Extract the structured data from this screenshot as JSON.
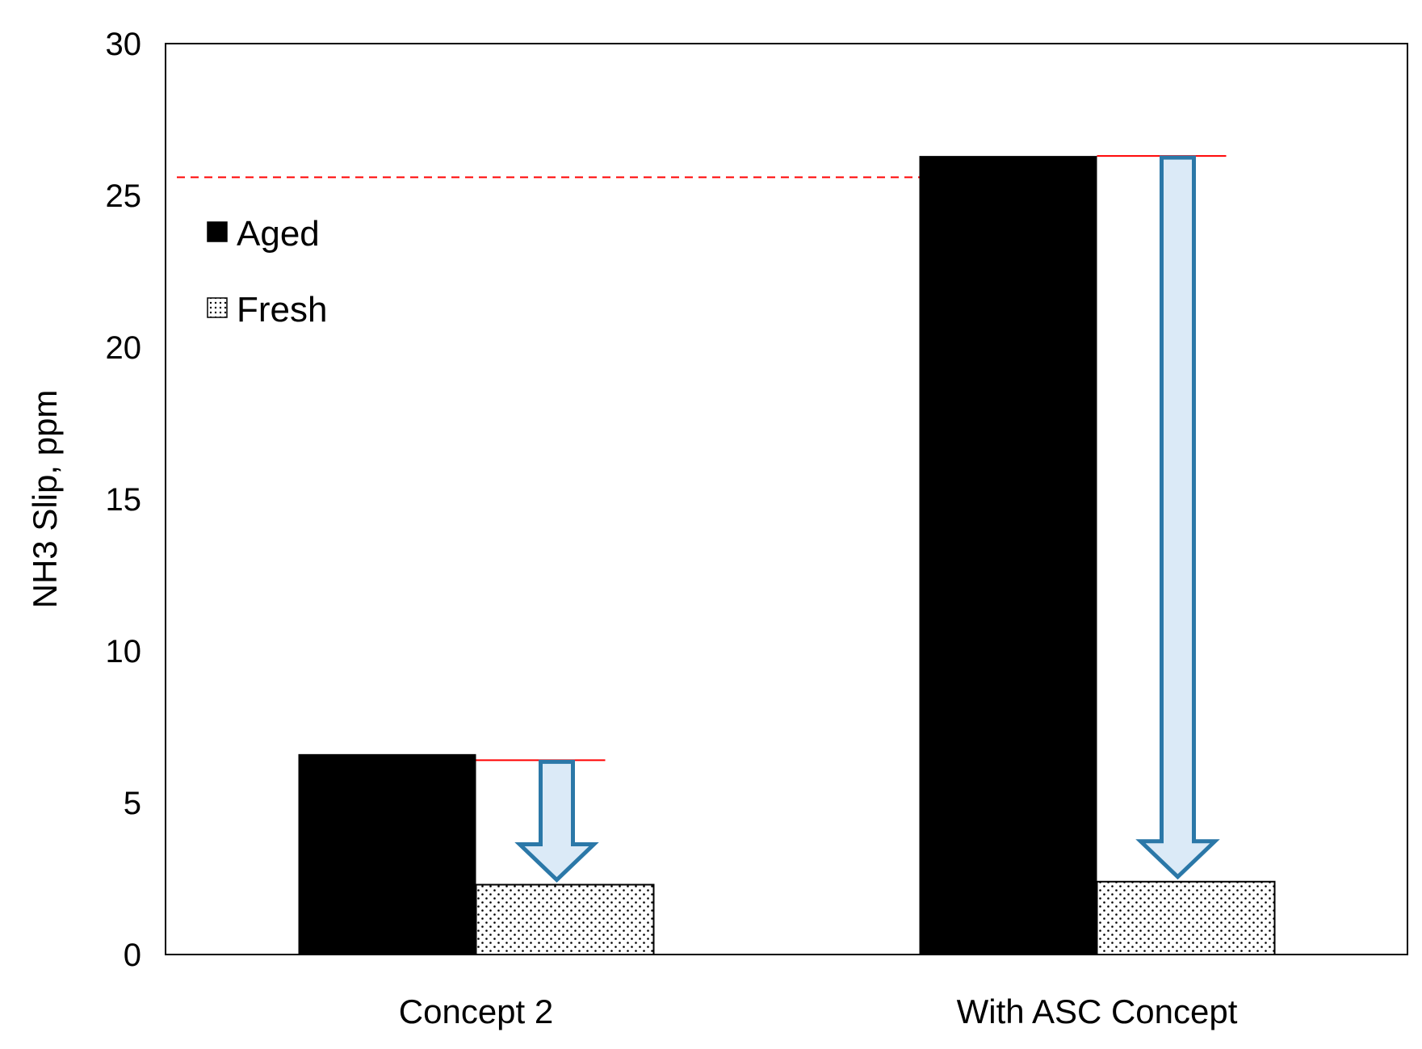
{
  "chart_data": {
    "type": "bar",
    "title": "",
    "xlabel": "",
    "ylabel": "NH3 Slip, ppm",
    "ylim": [
      0,
      30
    ],
    "yticks": [
      "0",
      "5",
      "10",
      "15",
      "20",
      "25",
      "30"
    ],
    "grid": false,
    "legend_position": "top-left (inside plot)",
    "categories": [
      "Concept 2",
      "With ASC Concept"
    ],
    "series": [
      {
        "name": "Aged",
        "values": [
          6.6,
          26.3
        ],
        "color": "#000000",
        "pattern": "solid"
      },
      {
        "name": "Fresh",
        "values": [
          2.3,
          2.4
        ],
        "color": "#ffffff",
        "pattern": "dotted"
      }
    ],
    "annotations": {
      "reference_line": {
        "value": 25.6,
        "color": "#ff0000",
        "style": "dashed"
      },
      "reduction_arrows": [
        {
          "category": "Concept 2",
          "from": 6.4,
          "to": 2.3
        },
        {
          "category": "With ASC Concept",
          "from": 26.3,
          "to": 2.4
        }
      ],
      "arrow_fill": "#dbeaf7",
      "arrow_stroke": "#2b78a8",
      "marker_line_color": "#ff0000"
    }
  }
}
